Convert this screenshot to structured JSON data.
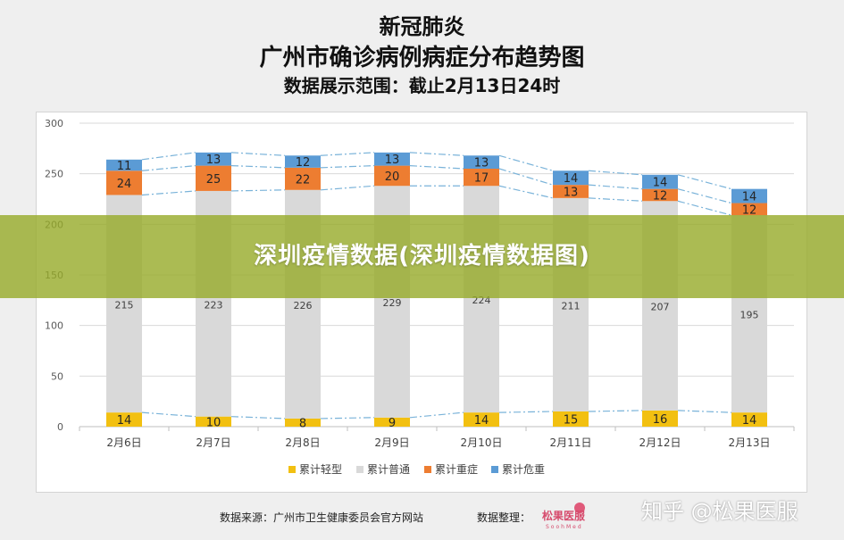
{
  "header": {
    "title_line1": "新冠肺炎",
    "title_line2": "广州市确诊病例病症分布趋势图",
    "title_line3": "数据展示范围：截止2月13日24时"
  },
  "banner": {
    "text": "深圳疫情数据(深圳疫情数据图)"
  },
  "footer": {
    "source": "数据来源：广州市卫生健康委员会官方网站",
    "organizer_label": "数据整理：",
    "logo_text": "松果医服",
    "logo_subtext": "SoohMed"
  },
  "watermark": {
    "text": "知乎 @松果医服"
  },
  "chart_data": {
    "type": "bar",
    "stacked": true,
    "categories": [
      "2月6日",
      "2月7日",
      "2月8日",
      "2月9日",
      "2月10日",
      "2月11日",
      "2月12日",
      "2月13日"
    ],
    "series": [
      {
        "name": "累计轻型",
        "color": "#f2c011",
        "values": [
          14,
          10,
          8,
          9,
          14,
          15,
          16,
          14
        ]
      },
      {
        "name": "累计普通",
        "color": "#d9d9d9",
        "values": [
          215,
          223,
          226,
          229,
          224,
          211,
          207,
          195
        ]
      },
      {
        "name": "累计重症",
        "color": "#ed7d31",
        "values": [
          24,
          25,
          22,
          20,
          17,
          13,
          12,
          12
        ]
      },
      {
        "name": "累计危重",
        "color": "#5b9bd5",
        "values": [
          11,
          13,
          12,
          13,
          13,
          14,
          14,
          14
        ]
      }
    ],
    "yticks": [
      "0",
      "50",
      "100",
      "150",
      "200",
      "250",
      "300"
    ],
    "ylim": [
      0,
      300
    ],
    "grid": true,
    "legend_position": "bottom",
    "connector_color": "#7ab3d9"
  }
}
